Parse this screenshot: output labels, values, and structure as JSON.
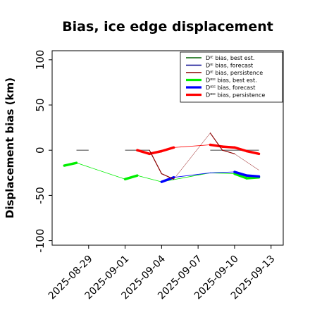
{
  "chart_data": {
    "type": "line",
    "title": "Bias, ice edge displacement",
    "ylabel": "Displacement bias (km)",
    "xlabel": "",
    "ylim": [
      -105,
      110
    ],
    "xlim": [
      "2025-08-26",
      "2025-09-14"
    ],
    "yticks": [
      100,
      50,
      0,
      -50,
      -100
    ],
    "xticks": [
      "2025-08-29",
      "2025-09-01",
      "2025-09-04",
      "2025-09-07",
      "2025-09-10",
      "2025-09-13"
    ],
    "highlight_tick": "2025-09-04",
    "highlight_color": "#228b22",
    "grid": false,
    "legend_position": "top-right",
    "series": [
      {
        "name": "Dᴵᴱ bias, best est.",
        "color": "#006400",
        "width": 1.2,
        "points": []
      },
      {
        "name": "Dᴵᴱ bias, forecast",
        "color": "#00008b",
        "width": 1.2,
        "points": []
      },
      {
        "name": "Dᴵᴱ bias, persistence",
        "color": "#8b0000",
        "width": 1.2,
        "points": [
          {
            "x": "2025-09-03",
            "y": 0
          },
          {
            "x": "2025-09-04",
            "y": -26
          },
          {
            "x": "2025-09-05",
            "y": -32
          },
          {
            "x": "2025-09-08",
            "y": 19
          },
          {
            "x": "2025-09-09",
            "y": 0
          },
          {
            "x": "2025-09-10",
            "y": -4
          },
          {
            "x": "2025-09-12",
            "y": -22
          }
        ]
      },
      {
        "name": "Dᴵᴱᴱ bias, best est.",
        "color": "#00ee00",
        "width": 3.5,
        "points": [
          {
            "x": "2025-08-27",
            "y": -17
          },
          {
            "x": "2025-08-28",
            "y": -14
          },
          {
            "x": "2025-09-01",
            "y": -32
          },
          {
            "x": "2025-09-02",
            "y": -28
          },
          {
            "x": "2025-09-04",
            "y": -35
          },
          {
            "x": "2025-09-08",
            "y": -25
          },
          {
            "x": "2025-09-10",
            "y": -26
          },
          {
            "x": "2025-09-11",
            "y": -31
          },
          {
            "x": "2025-09-12",
            "y": -30
          }
        ]
      },
      {
        "name": "Dᴵᴱᴱ bias, forecast",
        "color": "#0000ff",
        "width": 3.5,
        "points": [
          {
            "x": "2025-09-04",
            "y": -35
          },
          {
            "x": "2025-09-05",
            "y": -30
          },
          {
            "x": "2025-09-08",
            "y": -25
          },
          {
            "x": "2025-09-10",
            "y": -24
          },
          {
            "x": "2025-09-11",
            "y": -28
          },
          {
            "x": "2025-09-12",
            "y": -29
          }
        ]
      },
      {
        "name": "Dᴵᴱᴱ bias, persistence",
        "color": "#ff0000",
        "width": 3.5,
        "points": [
          {
            "x": "2025-09-02",
            "y": 0
          },
          {
            "x": "2025-09-03",
            "y": -4
          },
          {
            "x": "2025-09-04",
            "y": -1
          },
          {
            "x": "2025-09-05",
            "y": 3
          },
          {
            "x": "2025-09-08",
            "y": 6
          },
          {
            "x": "2025-09-09",
            "y": 4
          },
          {
            "x": "2025-09-10",
            "y": 3
          },
          {
            "x": "2025-09-11",
            "y": -1
          },
          {
            "x": "2025-09-12",
            "y": -4
          }
        ]
      }
    ],
    "zero_reference_segments": [
      {
        "x0": "2025-08-28",
        "x1": "2025-08-29",
        "y": 0
      },
      {
        "x0": "2025-09-01",
        "x1": "2025-09-03",
        "y": 0
      },
      {
        "x0": "2025-09-08",
        "x1": "2025-09-12",
        "y": 0
      }
    ],
    "zero_reference_color": "#808080"
  }
}
